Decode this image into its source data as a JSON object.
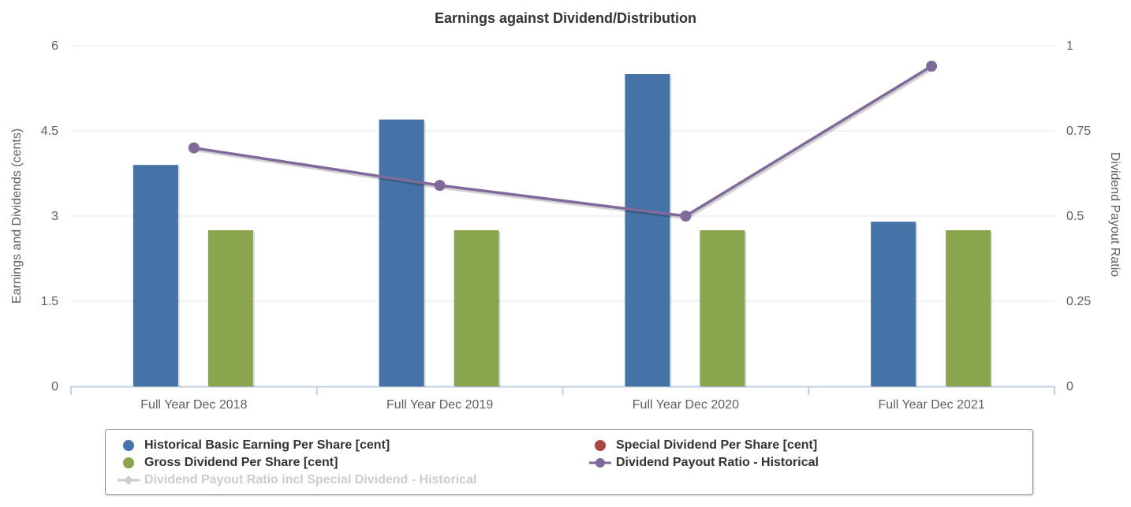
{
  "chart_data": {
    "type": "bar",
    "title": "Earnings against Dividend/Distribution",
    "categories": [
      "Full Year Dec 2018",
      "Full Year Dec 2019",
      "Full Year Dec 2020",
      "Full Year Dec 2021"
    ],
    "series": [
      {
        "name": "Historical Basic Earning Per Share [cent]",
        "type": "column",
        "axis": "left",
        "color": "#4572A7",
        "legend_marker": "circle",
        "disabled": false,
        "values": [
          3.9,
          4.7,
          5.5,
          2.9
        ]
      },
      {
        "name": "Special Dividend Per Share [cent]",
        "type": "column",
        "axis": "left",
        "color": "#AA4643",
        "legend_marker": "circle",
        "disabled": false,
        "values": [
          0,
          0,
          0,
          0
        ]
      },
      {
        "name": "Gross Dividend Per Share [cent]",
        "type": "column",
        "axis": "left",
        "color": "#89A54E",
        "legend_marker": "circle",
        "disabled": false,
        "values": [
          2.75,
          2.75,
          2.75,
          2.75
        ]
      },
      {
        "name": "Dividend Payout Ratio - Historical",
        "type": "line",
        "axis": "right",
        "color": "#80699B",
        "legend_marker": "line-circle",
        "disabled": false,
        "values": [
          0.7,
          0.59,
          0.5,
          0.94
        ]
      },
      {
        "name": "Dividend Payout Ratio incl Special Dividend - Historical",
        "type": "line",
        "axis": "right",
        "color": "#CCCCCC",
        "legend_marker": "line-diamond",
        "disabled": true,
        "values": []
      }
    ],
    "left_axis": {
      "title": "Earnings and Dividends (cents)",
      "range": [
        0,
        6
      ],
      "ticks": [
        0,
        1.5,
        3,
        4.5,
        6
      ]
    },
    "right_axis": {
      "title": "Dividend Payout Ratio",
      "range": [
        0,
        1
      ],
      "ticks": [
        0,
        0.25,
        0.5,
        0.75,
        1
      ]
    },
    "grid": true,
    "legend_position": "bottom",
    "legend_columns": 2,
    "style_colors": {
      "title_text": "#333333",
      "axis_text": "#606060",
      "grid_line": "#E6E6E6",
      "x_axis_line": "#C0D0E0",
      "legend_text": "#333333",
      "legend_disabled_text": "#CCCCCC",
      "legend_border": "#8F8F8F"
    }
  }
}
